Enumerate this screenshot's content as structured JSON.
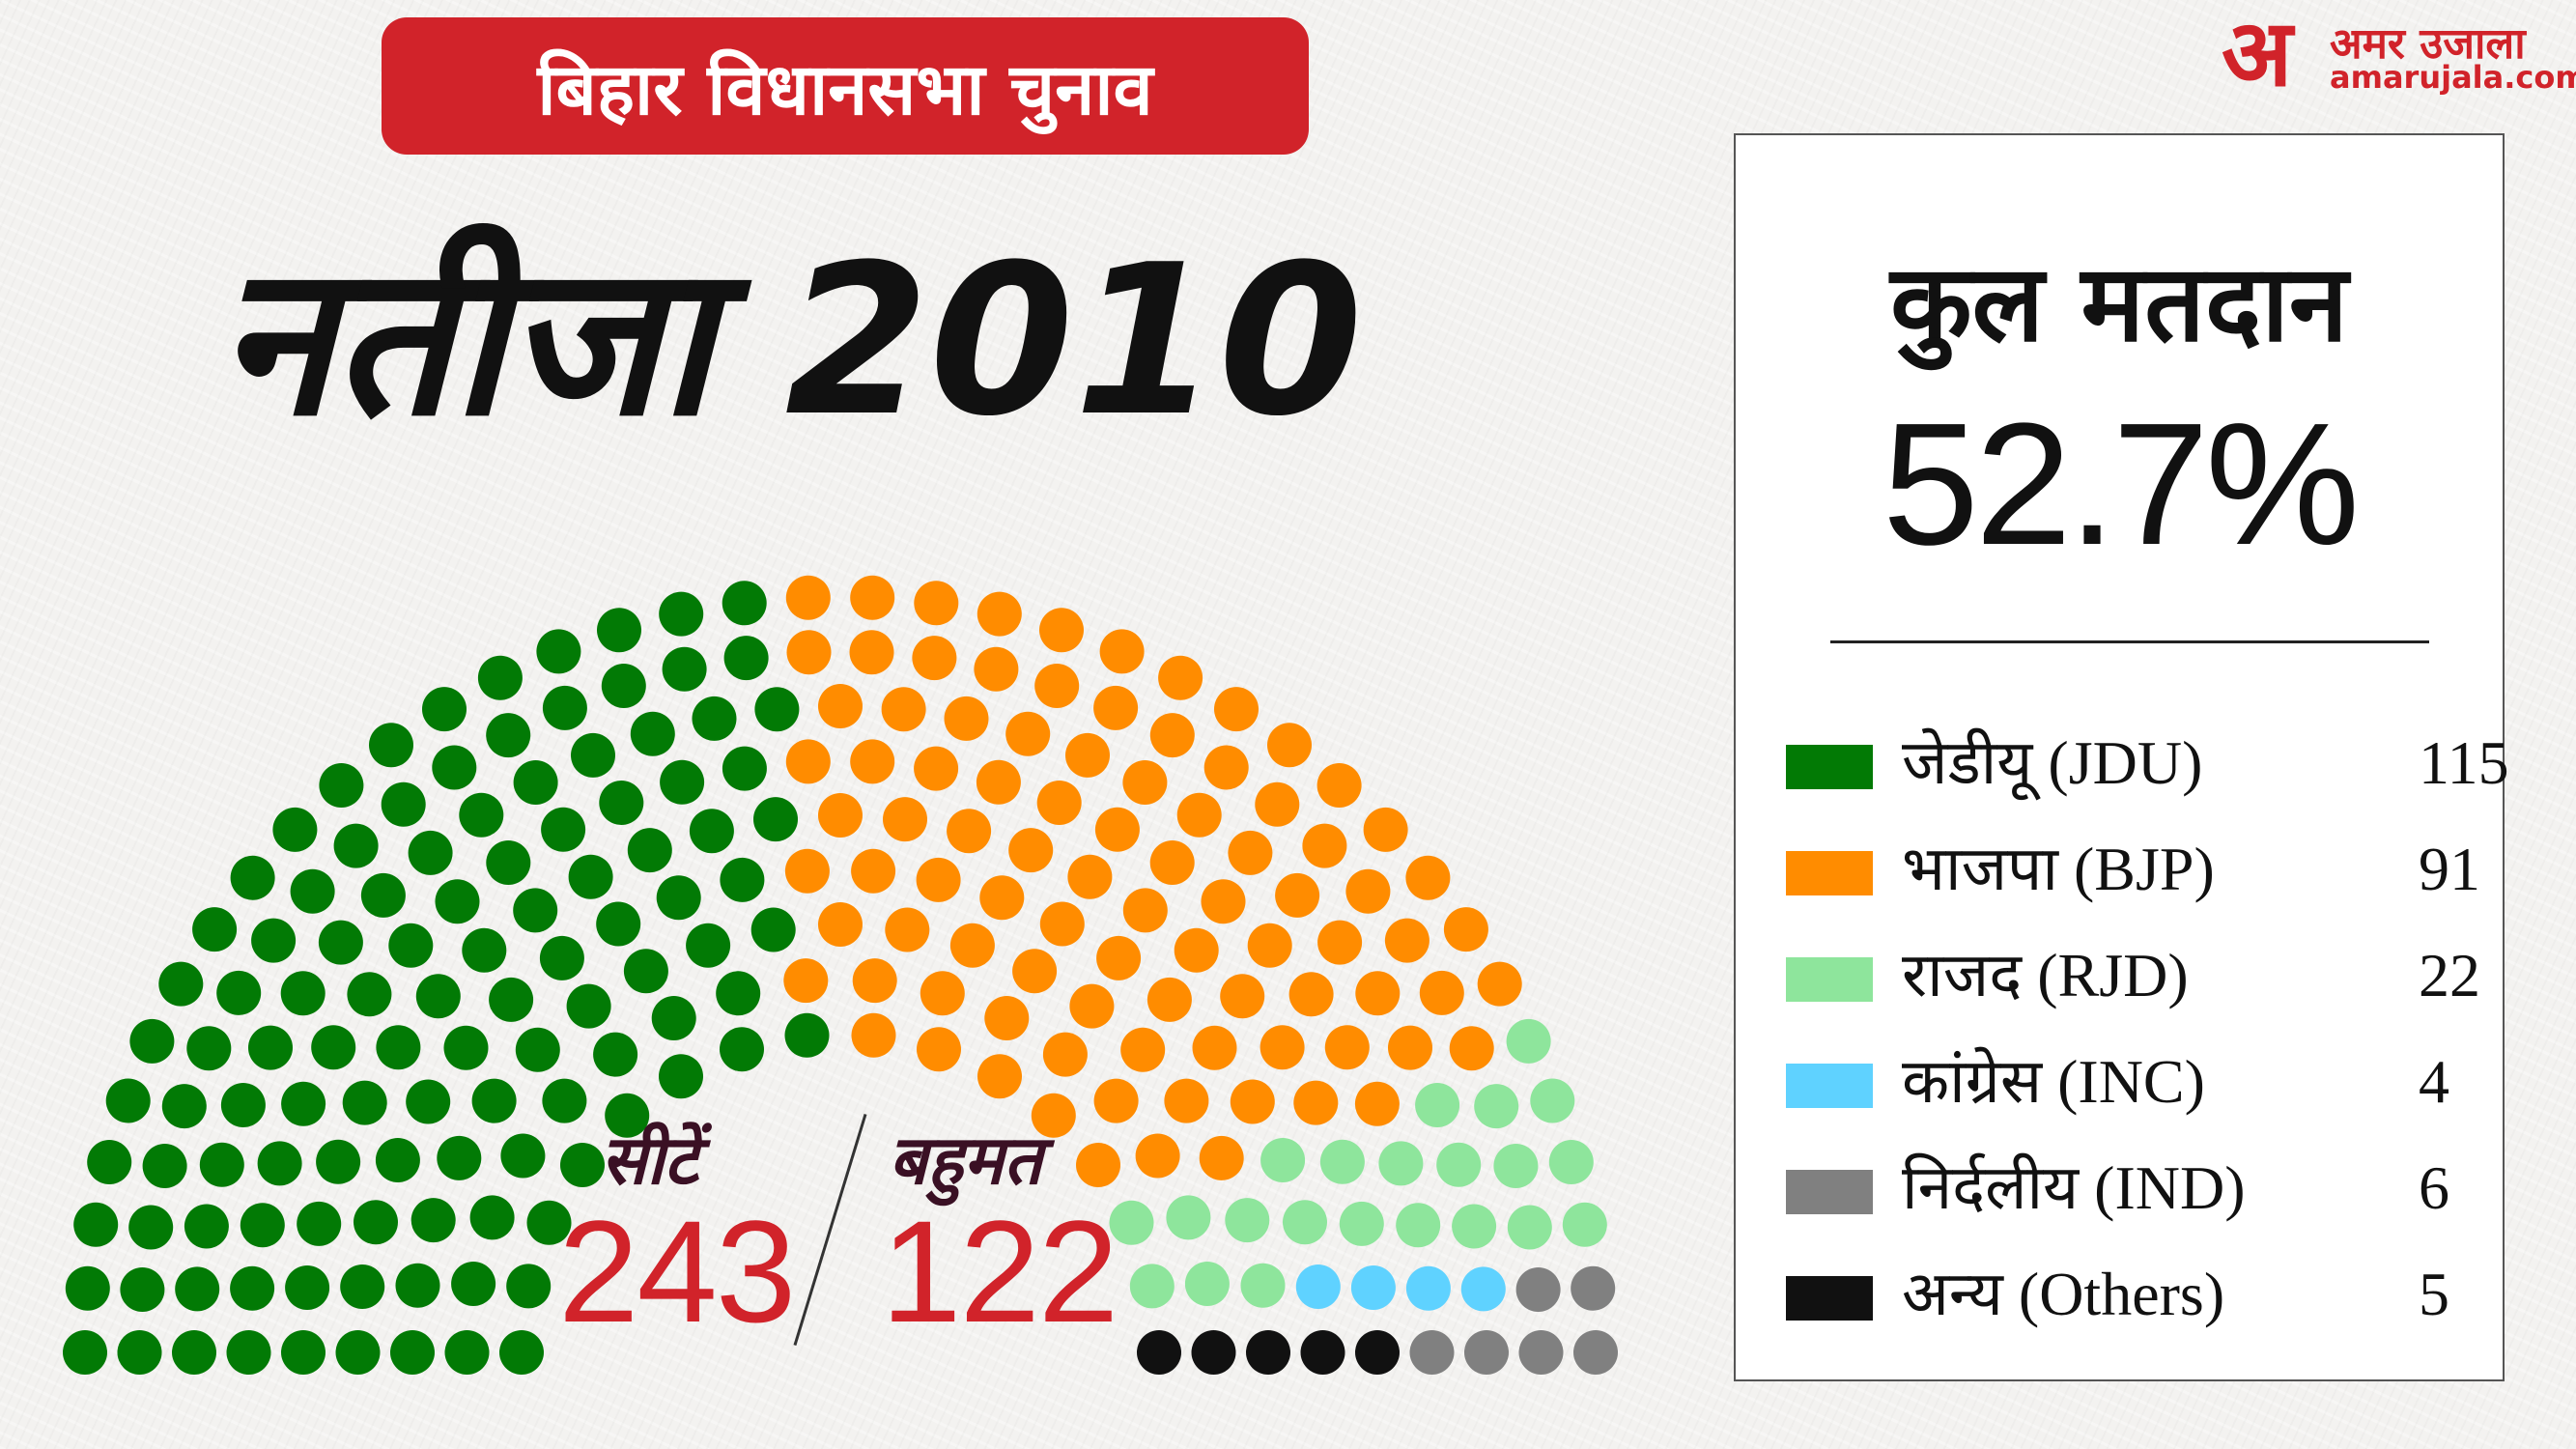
{
  "header": {
    "banner": "बिहार विधानसभा चुनाव",
    "title": "नतीजा 2010"
  },
  "logo": {
    "mark": "अ",
    "name": "अमर उजाला",
    "url": "amarujala.com"
  },
  "summary": {
    "turnout_label": "कुल मतदान",
    "turnout_value": "52.7%",
    "seats_label": "सीटें",
    "seats_value": "243",
    "majority_label": "बहुमत",
    "majority_value": "122"
  },
  "colors": {
    "brand_red": "#d1232a",
    "JDU": "#027a05",
    "BJP": "#ff8c00",
    "RJD": "#8ee59c",
    "INC": "#5fd2ff",
    "IND": "#808080",
    "Others": "#111111"
  },
  "chart_data": {
    "type": "parliament",
    "total": 243,
    "majority": 122,
    "parties": [
      {
        "name": "जेडीयू (JDU)",
        "seats": 115,
        "color": "#027a05"
      },
      {
        "name": "भाजपा (BJP)",
        "seats": 91,
        "color": "#ff8c00"
      },
      {
        "name": "राजद (RJD)",
        "seats": 22,
        "color": "#8ee59c"
      },
      {
        "name": "कांग्रेस (INC)",
        "seats": 4,
        "color": "#5fd2ff"
      },
      {
        "name": "निर्दलीय (IND)",
        "seats": 6,
        "color": "#808080"
      },
      {
        "name": "अन्य (Others)",
        "seats": 5,
        "color": "#111111"
      }
    ]
  }
}
